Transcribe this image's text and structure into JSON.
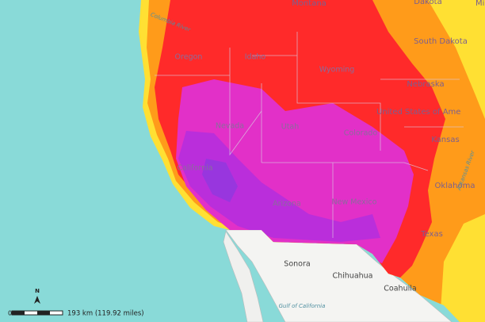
{
  "north": "N",
  "scale_bar": {
    "zero": "0",
    "text": "193 km (119.92 miles)"
  },
  "labels": [
    {
      "text": "Montana"
    },
    {
      "text": "Dakota"
    },
    {
      "text": "Mi"
    },
    {
      "text": "South Dakota"
    },
    {
      "text": "Nebraska"
    },
    {
      "text": "United States of Ame"
    },
    {
      "text": "Kansas"
    },
    {
      "text": "Oklahoma"
    },
    {
      "text": "Texas"
    },
    {
      "text": "Oregon"
    },
    {
      "text": "Idaho"
    },
    {
      "text": "Wyoming"
    },
    {
      "text": "Nevada"
    },
    {
      "text": "Utah"
    },
    {
      "text": "Colorado"
    },
    {
      "text": "California"
    },
    {
      "text": "Arizona"
    },
    {
      "text": "New Mexico"
    },
    {
      "text": "Sonora"
    },
    {
      "text": "Chihuahua"
    },
    {
      "text": "Coahuila"
    },
    {
      "text": "Gulf of California"
    },
    {
      "text": "Columbia River"
    },
    {
      "text": "Arkansas River"
    }
  ]
}
